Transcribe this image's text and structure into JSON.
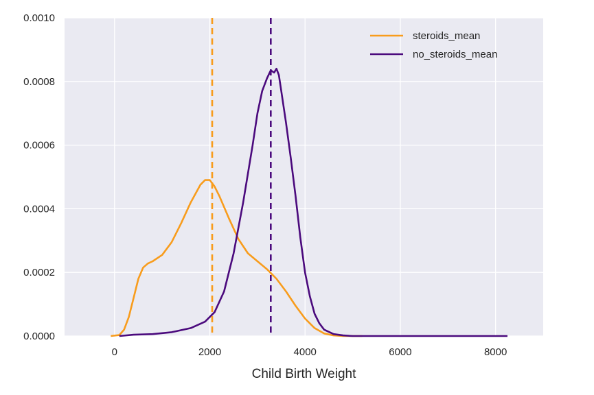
{
  "chart_data": {
    "type": "line",
    "title": "",
    "xlabel": "Child Birth Weight",
    "ylabel": "",
    "xlim": [
      -1050,
      9000
    ],
    "ylim": [
      0,
      0.001
    ],
    "xticks": [
      0,
      2000,
      4000,
      6000,
      8000
    ],
    "xtick_labels": [
      "0",
      "2000",
      "4000",
      "6000",
      "8000"
    ],
    "yticks": [
      0,
      0.0002,
      0.0004,
      0.0006,
      0.0008,
      0.001
    ],
    "ytick_labels": [
      "0.0000",
      "0.0002",
      "0.0004",
      "0.0006",
      "0.0008",
      "0.0010"
    ],
    "grid": true,
    "legend_position": "top-right",
    "series": [
      {
        "name": "steroids_mean",
        "color": "#f89c1c",
        "x": [
          -80,
          100,
          200,
          300,
          400,
          500,
          600,
          700,
          800,
          1000,
          1200,
          1400,
          1600,
          1800,
          1900,
          2000,
          2100,
          2200,
          2400,
          2600,
          2800,
          3000,
          3200,
          3400,
          3600,
          3800,
          4000,
          4200,
          4400,
          4600,
          4800,
          5000,
          5200
        ],
        "y": [
          0,
          3e-06,
          2e-05,
          6e-05,
          0.00012,
          0.00018,
          0.000215,
          0.000228,
          0.000235,
          0.000255,
          0.000295,
          0.000355,
          0.00042,
          0.000475,
          0.00049,
          0.00049,
          0.00047,
          0.00044,
          0.00037,
          0.000305,
          0.00026,
          0.000235,
          0.00021,
          0.00018,
          0.00014,
          9.5e-05,
          5.5e-05,
          2.5e-05,
          8e-06,
          2e-06,
          0,
          0,
          0
        ]
      },
      {
        "name": "no_steroids_mean",
        "color": "#4b0a7d",
        "x": [
          100,
          400,
          800,
          1200,
          1600,
          1900,
          2100,
          2300,
          2500,
          2700,
          2900,
          3000,
          3100,
          3200,
          3280,
          3350,
          3400,
          3450,
          3500,
          3600,
          3700,
          3800,
          3900,
          4000,
          4100,
          4200,
          4300,
          4400,
          4600,
          4800,
          5000,
          5500,
          6000,
          7000,
          8000,
          8250
        ],
        "y": [
          0,
          4e-06,
          6e-06,
          1.2e-05,
          2.5e-05,
          4.5e-05,
          7.5e-05,
          0.00014,
          0.00026,
          0.00042,
          0.0006,
          0.0007,
          0.00077,
          0.00081,
          0.000835,
          0.000828,
          0.00084,
          0.00082,
          0.00077,
          0.00067,
          0.00056,
          0.00044,
          0.00031,
          0.0002,
          0.000125,
          7e-05,
          4e-05,
          2e-05,
          6e-06,
          2e-06,
          0,
          0,
          0,
          0,
          0,
          0
        ]
      }
    ],
    "vlines": [
      {
        "name": "steroids_mean",
        "x": 2050,
        "color": "#f89c1c",
        "style": "dashed"
      },
      {
        "name": "no_steroids_mean",
        "x": 3280,
        "color": "#4b0a7d",
        "style": "dashed"
      }
    ]
  }
}
